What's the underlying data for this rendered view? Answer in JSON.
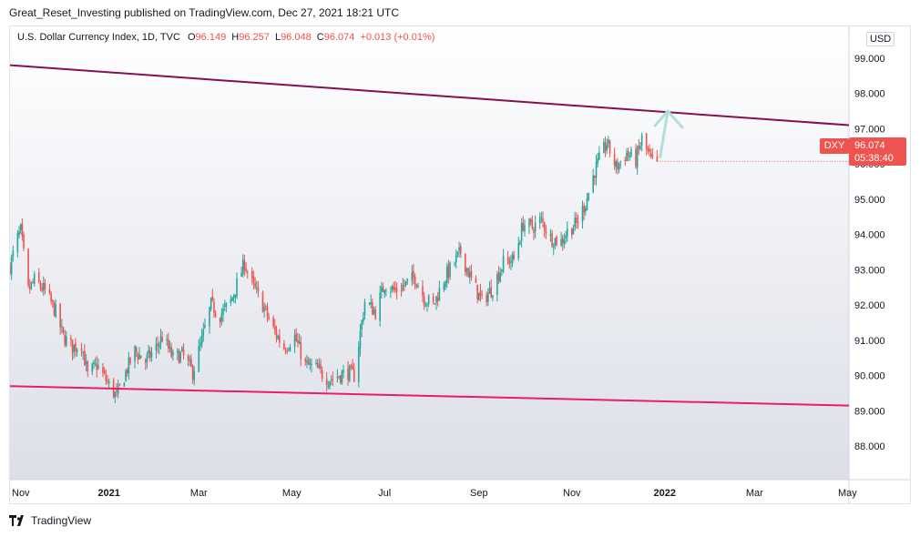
{
  "header": {
    "published": "Great_Reset_Investing published on TradingView.com, Dec 27, 2021 18:21 UTC"
  },
  "legend": {
    "title": "U.S. Dollar Currency Index, 1D, TVC",
    "o_label": "O",
    "o_value": "96.149",
    "h_label": "H",
    "h_value": "96.257",
    "l_label": "L",
    "l_value": "96.048",
    "c_label": "C",
    "c_value": "96.074",
    "change": "+0.013 (+0.01%)"
  },
  "currency": "USD",
  "price_tag": {
    "symbol": "DXY",
    "price": "96.074",
    "countdown": "05:38:40"
  },
  "footer": {
    "brand": "TradingView"
  },
  "colors": {
    "up": "#26a69a",
    "down": "#ef5350",
    "upper_trendline": "#880e4f",
    "lower_trendline": "#e91e63",
    "arrow": "#b2dfdb"
  },
  "chart_data": {
    "type": "candlestick",
    "title": "U.S. Dollar Currency Index, 1D, TVC",
    "y_ticks": [
      "88.000",
      "89.000",
      "90.000",
      "91.000",
      "92.000",
      "93.000",
      "94.000",
      "95.000",
      "96.000",
      "97.000",
      "98.000",
      "99.000"
    ],
    "x_ticks": [
      {
        "label": "Nov",
        "date": "2020-11-01"
      },
      {
        "label": "2021",
        "date": "2021-01-01"
      },
      {
        "label": "Mar",
        "date": "2021-03-01"
      },
      {
        "label": "May",
        "date": "2021-05-01"
      },
      {
        "label": "Jul",
        "date": "2021-07-01"
      },
      {
        "label": "Sep",
        "date": "2021-09-01"
      },
      {
        "label": "Nov",
        "date": "2021-11-01"
      },
      {
        "label": "2022",
        "date": "2022-01-01"
      },
      {
        "label": "Mar",
        "date": "2022-03-01"
      },
      {
        "label": "May",
        "date": "2022-05-01"
      }
    ],
    "x_range": [
      "2020-10-28",
      "2022-05-02"
    ],
    "y_range": [
      87.05,
      99.9
    ],
    "grid": false,
    "closes": [
      [
        "2020-10-28",
        93.1
      ],
      [
        "2020-11-02",
        93.9
      ],
      [
        "2020-11-04",
        94.1
      ],
      [
        "2020-11-09",
        92.4
      ],
      [
        "2020-11-13",
        92.7
      ],
      [
        "2020-11-20",
        92.4
      ],
      [
        "2020-11-27",
        91.8
      ],
      [
        "2020-12-02",
        91.1
      ],
      [
        "2020-12-08",
        90.8
      ],
      [
        "2020-12-14",
        90.9
      ],
      [
        "2020-12-18",
        90.0
      ],
      [
        "2020-12-24",
        90.3
      ],
      [
        "2020-12-31",
        89.8
      ],
      [
        "2021-01-06",
        89.4
      ],
      [
        "2021-01-12",
        90.1
      ],
      [
        "2021-01-18",
        90.7
      ],
      [
        "2021-01-25",
        90.4
      ],
      [
        "2021-02-01",
        90.8
      ],
      [
        "2021-02-05",
        91.1
      ],
      [
        "2021-02-12",
        90.5
      ],
      [
        "2021-02-18",
        90.6
      ],
      [
        "2021-02-25",
        90.1
      ],
      [
        "2021-03-03",
        91.0
      ],
      [
        "2021-03-09",
        92.0
      ],
      [
        "2021-03-15",
        91.7
      ],
      [
        "2021-03-22",
        92.1
      ],
      [
        "2021-03-31",
        93.2
      ],
      [
        "2021-04-05",
        92.6
      ],
      [
        "2021-04-12",
        92.0
      ],
      [
        "2021-04-19",
        91.3
      ],
      [
        "2021-04-26",
        90.8
      ],
      [
        "2021-05-03",
        91.1
      ],
      [
        "2021-05-10",
        90.3
      ],
      [
        "2021-05-17",
        90.2
      ],
      [
        "2021-05-25",
        89.9
      ],
      [
        "2021-06-01",
        90.0
      ],
      [
        "2021-06-07",
        90.1
      ],
      [
        "2021-06-11",
        90.0
      ],
      [
        "2021-06-18",
        92.1
      ],
      [
        "2021-06-25",
        91.8
      ],
      [
        "2021-07-01",
        92.6
      ],
      [
        "2021-07-08",
        92.4
      ],
      [
        "2021-07-15",
        92.6
      ],
      [
        "2021-07-21",
        92.8
      ],
      [
        "2021-07-27",
        92.2
      ],
      [
        "2021-08-02",
        92.0
      ],
      [
        "2021-08-10",
        92.8
      ],
      [
        "2021-08-20",
        93.5
      ],
      [
        "2021-08-27",
        92.7
      ],
      [
        "2021-09-03",
        92.1
      ],
      [
        "2021-09-10",
        92.5
      ],
      [
        "2021-09-17",
        93.2
      ],
      [
        "2021-09-24",
        93.3
      ],
      [
        "2021-09-30",
        94.3
      ],
      [
        "2021-10-06",
        94.2
      ],
      [
        "2021-10-12",
        94.4
      ],
      [
        "2021-10-18",
        93.9
      ],
      [
        "2021-10-25",
        93.8
      ],
      [
        "2021-10-29",
        94.1
      ],
      [
        "2021-11-04",
        94.3
      ],
      [
        "2021-11-10",
        94.9
      ],
      [
        "2021-11-16",
        95.8
      ],
      [
        "2021-11-24",
        96.6
      ],
      [
        "2021-11-30",
        95.9
      ],
      [
        "2021-12-07",
        96.3
      ],
      [
        "2021-12-13",
        96.1
      ],
      [
        "2021-12-17",
        96.7
      ],
      [
        "2021-12-24",
        96.0
      ],
      [
        "2021-12-27",
        96.074
      ]
    ],
    "trendlines": [
      {
        "name": "upper",
        "from": [
          "2020-10-28",
          98.8
        ],
        "to": [
          "2022-05-02",
          97.1
        ]
      },
      {
        "name": "lower",
        "from": [
          "2020-10-28",
          89.7
        ],
        "to": [
          "2022-05-02",
          89.15
        ]
      }
    ],
    "arrow": {
      "from": [
        "2021-12-29",
        96.2
      ],
      "to": [
        "2022-01-03",
        97.5
      ]
    }
  }
}
